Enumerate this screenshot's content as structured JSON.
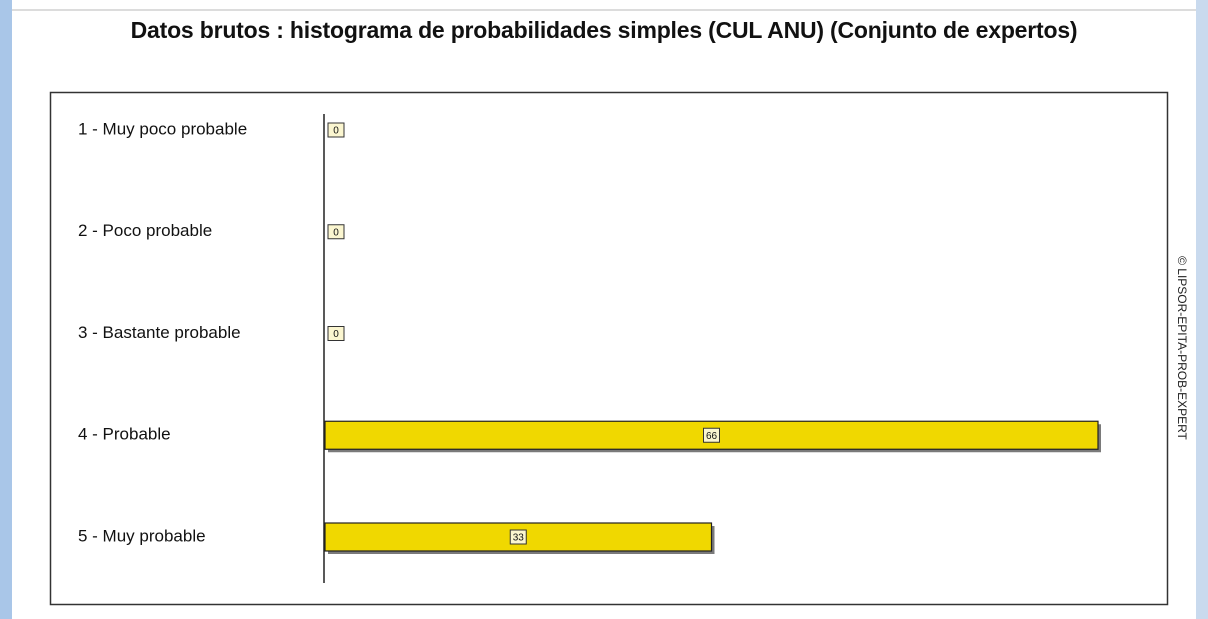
{
  "chart_data": {
    "type": "barh",
    "title": "Datos brutos : histograma de probabilidades simples (CUL ANU) (Conjunto de expertos)",
    "categories": [
      "1 - Muy poco probable",
      "2 - Poco probable",
      "3 - Bastante probable",
      "4 - Probable",
      "5 - Muy probable"
    ],
    "values": [
      0,
      0,
      0,
      66,
      33
    ],
    "color": "#f0d800",
    "credit": "© LIPSOR-EPITA-PROB-EXPERT"
  }
}
